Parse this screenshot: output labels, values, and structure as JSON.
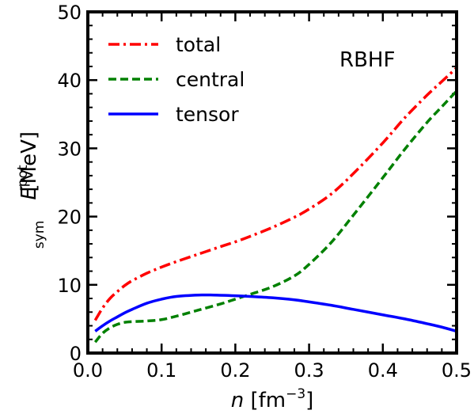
{
  "chart_data": {
    "type": "line",
    "xlabel": {
      "symbol": "n",
      "unit": " [fm",
      "unit_sup": "−3",
      "unit_end": "]"
    },
    "ylabel": {
      "symbol": "E",
      "sup": "pot",
      "sub": "sym",
      "unit": " [MeV]"
    },
    "annotation": "RBHF",
    "xlim": [
      0.0,
      0.5
    ],
    "ylim": [
      0,
      50
    ],
    "xticks": [
      0.0,
      0.1,
      0.2,
      0.3,
      0.4,
      0.5
    ],
    "xtick_labels": [
      "0.0",
      "0.1",
      "0.2",
      "0.3",
      "0.4",
      "0.5"
    ],
    "yticks": [
      0,
      10,
      20,
      30,
      40,
      50
    ],
    "ytick_labels": [
      "0",
      "10",
      "20",
      "30",
      "40",
      "50"
    ],
    "grid": false,
    "legend_position": "top-left",
    "series": [
      {
        "name": "total",
        "color": "#ff0000",
        "dash": "dash-dot",
        "x": [
          0.01,
          0.02,
          0.03,
          0.04,
          0.05,
          0.06,
          0.08,
          0.1,
          0.12,
          0.15,
          0.18,
          0.2,
          0.22,
          0.25,
          0.28,
          0.3,
          0.33,
          0.36,
          0.4,
          0.43,
          0.46,
          0.48,
          0.5
        ],
        "y": [
          4.8,
          6.6,
          8.0,
          9.0,
          9.9,
          10.6,
          11.7,
          12.6,
          13.4,
          14.5,
          15.6,
          16.3,
          17.1,
          18.4,
          19.9,
          21.1,
          23.3,
          26.3,
          30.8,
          34.5,
          37.8,
          39.8,
          41.8
        ]
      },
      {
        "name": "central",
        "color": "#008000",
        "dash": "dashed",
        "x": [
          0.01,
          0.02,
          0.03,
          0.04,
          0.05,
          0.06,
          0.08,
          0.1,
          0.12,
          0.15,
          0.18,
          0.2,
          0.22,
          0.25,
          0.28,
          0.3,
          0.33,
          0.36,
          0.4,
          0.43,
          0.46,
          0.48,
          0.5
        ],
        "y": [
          1.6,
          2.9,
          3.7,
          4.2,
          4.5,
          4.6,
          4.7,
          4.9,
          5.4,
          6.3,
          7.2,
          7.9,
          8.6,
          9.7,
          11.3,
          13.0,
          16.2,
          20.2,
          25.7,
          29.9,
          33.8,
          36.1,
          38.4
        ]
      },
      {
        "name": "tensor",
        "color": "#0000ff",
        "dash": "solid",
        "x": [
          0.01,
          0.02,
          0.03,
          0.04,
          0.05,
          0.06,
          0.08,
          0.1,
          0.12,
          0.15,
          0.17,
          0.2,
          0.22,
          0.25,
          0.28,
          0.3,
          0.33,
          0.36,
          0.4,
          0.43,
          0.46,
          0.48,
          0.5
        ],
        "y": [
          3.2,
          4.0,
          4.7,
          5.3,
          5.9,
          6.4,
          7.3,
          7.9,
          8.3,
          8.5,
          8.5,
          8.4,
          8.3,
          8.1,
          7.8,
          7.5,
          7.0,
          6.4,
          5.6,
          5.0,
          4.3,
          3.8,
          3.2
        ]
      }
    ]
  }
}
